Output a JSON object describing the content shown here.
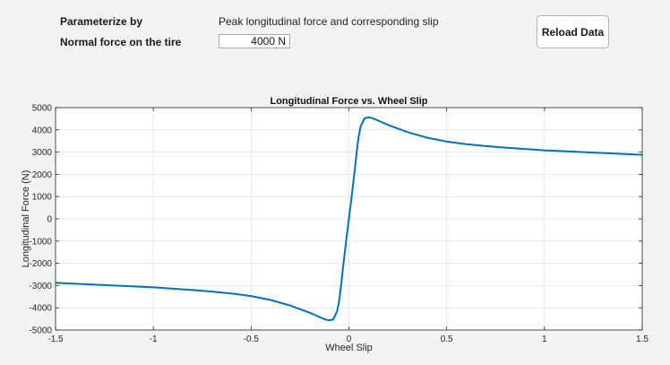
{
  "controls": {
    "parameterize_label": "Parameterize by",
    "parameterize_value": "Peak longitudinal force and corresponding slip",
    "normal_force_label": "Normal force on the tire",
    "normal_force_value": "4000 N",
    "reload_label": "Reload Data"
  },
  "chart_data": {
    "type": "line",
    "title": "Longitudinal Force vs. Wheel Slip",
    "xlabel": "Wheel Slip",
    "ylabel": "Longitudinal Force (N)",
    "xlim": [
      -1.5,
      1.5
    ],
    "ylim": [
      -5000,
      5000
    ],
    "xticks": [
      -1.5,
      -1,
      -0.5,
      0,
      0.5,
      1,
      1.5
    ],
    "xtick_labels": [
      "-1.5",
      "-1",
      "-0.5",
      "0",
      "0.5",
      "1",
      "1.5"
    ],
    "yticks": [
      -5000,
      -4000,
      -3000,
      -2000,
      -1000,
      0,
      1000,
      2000,
      3000,
      4000,
      5000
    ],
    "ytick_labels": [
      "-5000",
      "-4000",
      "-3000",
      "-2000",
      "-1000",
      "0",
      "1000",
      "2000",
      "3000",
      "4000",
      "5000"
    ],
    "grid": true,
    "line_color": "#0072bd",
    "series": [
      {
        "x": [
          -1.5,
          -1.4,
          -1.3,
          -1.2,
          -1.1,
          -1.0,
          -0.9,
          -0.8,
          -0.7,
          -0.6,
          -0.5,
          -0.4,
          -0.3,
          -0.25,
          -0.2,
          -0.15,
          -0.12,
          -0.1,
          -0.08,
          -0.06,
          -0.05,
          -0.04,
          -0.03,
          -0.02,
          -0.01,
          0,
          0.01,
          0.02,
          0.03,
          0.04,
          0.05,
          0.06,
          0.08,
          0.1,
          0.12,
          0.15,
          0.2,
          0.25,
          0.3,
          0.4,
          0.5,
          0.6,
          0.7,
          0.8,
          0.9,
          1.0,
          1.1,
          1.2,
          1.3,
          1.4,
          1.5
        ],
        "y": [
          -2880,
          -2920,
          -2960,
          -3000,
          -3040,
          -3080,
          -3140,
          -3200,
          -3270,
          -3360,
          -3470,
          -3650,
          -3900,
          -4060,
          -4220,
          -4420,
          -4530,
          -4560,
          -4520,
          -4150,
          -3700,
          -3000,
          -2200,
          -1450,
          -700,
          0,
          700,
          1450,
          2200,
          3000,
          3700,
          4150,
          4520,
          4560,
          4530,
          4420,
          4220,
          4060,
          3900,
          3650,
          3470,
          3360,
          3270,
          3200,
          3140,
          3080,
          3040,
          3000,
          2960,
          2920,
          2880
        ]
      }
    ]
  }
}
